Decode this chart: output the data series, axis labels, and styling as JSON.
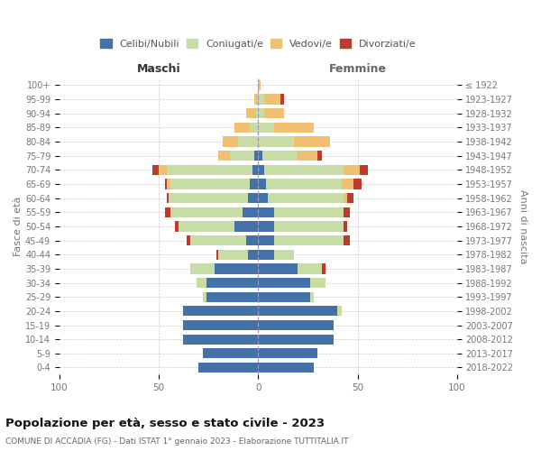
{
  "age_groups": [
    "0-4",
    "5-9",
    "10-14",
    "15-19",
    "20-24",
    "25-29",
    "30-34",
    "35-39",
    "40-44",
    "45-49",
    "50-54",
    "55-59",
    "60-64",
    "65-69",
    "70-74",
    "75-79",
    "80-84",
    "85-89",
    "90-94",
    "95-99",
    "100+"
  ],
  "birth_years": [
    "2018-2022",
    "2013-2017",
    "2008-2012",
    "2003-2007",
    "1998-2002",
    "1993-1997",
    "1988-1992",
    "1983-1987",
    "1978-1982",
    "1973-1977",
    "1968-1972",
    "1963-1967",
    "1958-1962",
    "1953-1957",
    "1948-1952",
    "1943-1947",
    "1938-1942",
    "1933-1937",
    "1928-1932",
    "1923-1927",
    "≤ 1922"
  ],
  "colors": {
    "celibi": "#4472a8",
    "coniugati": "#c8dca6",
    "vedovi": "#f0c070",
    "divorziati": "#c0392b"
  },
  "maschi": {
    "celibi": [
      30,
      28,
      38,
      38,
      38,
      26,
      26,
      22,
      5,
      6,
      12,
      8,
      5,
      4,
      3,
      2,
      0,
      0,
      0,
      0,
      0
    ],
    "coniugati": [
      0,
      0,
      0,
      0,
      0,
      2,
      5,
      12,
      15,
      28,
      28,
      36,
      40,
      40,
      43,
      12,
      10,
      4,
      1,
      0,
      0
    ],
    "vedovi": [
      0,
      0,
      0,
      0,
      0,
      0,
      0,
      0,
      0,
      0,
      0,
      0,
      0,
      2,
      4,
      6,
      8,
      8,
      5,
      2,
      0
    ],
    "divorziati": [
      0,
      0,
      0,
      0,
      0,
      0,
      0,
      0,
      1,
      2,
      2,
      3,
      1,
      1,
      3,
      0,
      0,
      0,
      0,
      0,
      0
    ]
  },
  "femmine": {
    "celibi": [
      28,
      30,
      38,
      38,
      40,
      26,
      26,
      20,
      8,
      8,
      8,
      8,
      5,
      4,
      3,
      2,
      0,
      0,
      0,
      0,
      0
    ],
    "coniugati": [
      0,
      0,
      0,
      0,
      2,
      2,
      8,
      12,
      10,
      35,
      35,
      35,
      38,
      38,
      40,
      18,
      18,
      8,
      3,
      3,
      0
    ],
    "vedovi": [
      0,
      0,
      0,
      0,
      0,
      0,
      0,
      0,
      0,
      0,
      0,
      0,
      2,
      6,
      8,
      10,
      18,
      20,
      10,
      8,
      1
    ],
    "divorziati": [
      0,
      0,
      0,
      0,
      0,
      0,
      0,
      2,
      0,
      3,
      2,
      3,
      3,
      4,
      4,
      2,
      0,
      0,
      0,
      2,
      0
    ]
  },
  "xlim": 100,
  "title": "Popolazione per età, sesso e stato civile - 2023",
  "subtitle": "COMUNE DI ACCADIA (FG) - Dati ISTAT 1° gennaio 2023 - Elaborazione TUTTITALIA.IT",
  "ylabel_left": "Fasce di età",
  "ylabel_right": "Anni di nascita",
  "xlabel_maschi": "Maschi",
  "xlabel_femmine": "Femmine",
  "legend_labels": [
    "Celibi/Nubili",
    "Coniugati/e",
    "Vedovi/e",
    "Divorziati/e"
  ],
  "background_color": "#ffffff",
  "grid_color": "#cccccc",
  "grid_dot_color": "#aaaacc",
  "tick_label_color": "#777777",
  "header_color_maschi": "#333333",
  "header_color_femmine": "#666666"
}
